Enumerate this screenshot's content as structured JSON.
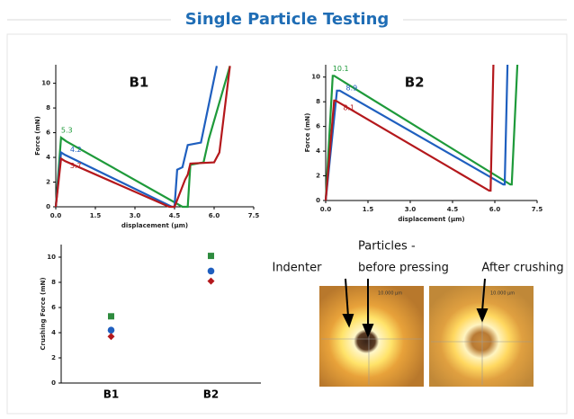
{
  "header": {
    "title": "Single Particle Testing"
  },
  "chart_data": [
    {
      "type": "line",
      "title": "B1",
      "x_label": "displacement (µm)",
      "y_label": "Force (mN)",
      "xlim": [
        0,
        7.5
      ],
      "xticks": [
        {
          "value": 0,
          "label": "0.0"
        },
        1.5,
        {
          "value": 3,
          "label": "3.0"
        },
        4.5,
        {
          "value": 6,
          "label": "6.0"
        },
        7.5
      ],
      "ylim": [
        0,
        11.5
      ],
      "yticks": [
        0,
        2,
        4,
        6,
        8,
        10
      ],
      "annotations": [
        "5.3",
        "4.2",
        "3.7"
      ],
      "series": [
        {
          "color": "#1e9a3a",
          "x": [
            0,
            0.2,
            0.4,
            4.8,
            5.0,
            5.1,
            5.6,
            5.8,
            6.6
          ],
          "values": [
            0,
            5.6,
            5.3,
            0,
            0,
            3.4,
            3.6,
            5.5,
            11.4
          ]
        },
        {
          "color": "#1f5fbf",
          "x": [
            0,
            0.2,
            0.35,
            4.4,
            4.5,
            4.6,
            4.8,
            5.0,
            5.5,
            6.1
          ],
          "values": [
            0,
            4.4,
            4.2,
            0,
            0,
            3.0,
            3.2,
            5.0,
            5.2,
            11.4
          ]
        },
        {
          "color": "#b4181c",
          "x": [
            0,
            0.2,
            0.35,
            4.3,
            4.5,
            4.9,
            5.0,
            5.1,
            6.0,
            6.2,
            6.6
          ],
          "values": [
            0,
            3.9,
            3.7,
            0,
            0,
            2.2,
            2.6,
            3.5,
            3.6,
            4.4,
            11.4
          ]
        }
      ]
    },
    {
      "type": "line",
      "title": "B2",
      "x_label": "displacement (µm)",
      "y_label": "Force (mN)",
      "xlim": [
        0,
        7.5
      ],
      "xticks": [
        {
          "value": 0,
          "label": "0.0"
        },
        1.5,
        {
          "value": 3,
          "label": "3.0"
        },
        4.5,
        {
          "value": 6,
          "label": "6.0"
        },
        7.5
      ],
      "ylim": [
        0,
        11
      ],
      "yticks": [
        0,
        2,
        4,
        6,
        8,
        10
      ],
      "annotations": [
        "10.1",
        "8.9",
        "8.1"
      ],
      "series": [
        {
          "color": "#1e9a3a",
          "x": [
            0,
            0.25,
            0.3,
            6.55,
            6.6,
            6.8
          ],
          "values": [
            0,
            10.1,
            10.1,
            1.3,
            1.3,
            11
          ]
        },
        {
          "color": "#1f5fbf",
          "x": [
            0,
            0.4,
            0.5,
            6.3,
            6.35,
            6.45
          ],
          "values": [
            0,
            8.9,
            8.9,
            1.3,
            1.3,
            11
          ]
        },
        {
          "color": "#b4181c",
          "x": [
            0,
            0.3,
            0.35,
            5.8,
            5.85,
            5.95
          ],
          "values": [
            0,
            8.1,
            8.1,
            0.8,
            0.8,
            11
          ]
        }
      ]
    },
    {
      "type": "scatter",
      "y_label": "Crushing Force (mN)",
      "categories": [
        "B1",
        "B2"
      ],
      "ylim": [
        0,
        11
      ],
      "yticks": [
        0,
        2,
        4,
        6,
        8,
        10
      ],
      "series": [
        {
          "color": "#2e8b3e",
          "marker": "square",
          "values": [
            5.3,
            10.1
          ]
        },
        {
          "color": "#1f5fbf",
          "marker": "circle",
          "values": [
            4.2,
            8.9
          ]
        },
        {
          "color": "#b4181c",
          "marker": "diamond",
          "values": [
            3.7,
            8.1
          ]
        }
      ]
    }
  ],
  "images": {
    "labels": [
      "Indenter",
      "Particles -",
      "before pressing",
      "After crushing"
    ],
    "scale_label": "10.000 µm"
  }
}
